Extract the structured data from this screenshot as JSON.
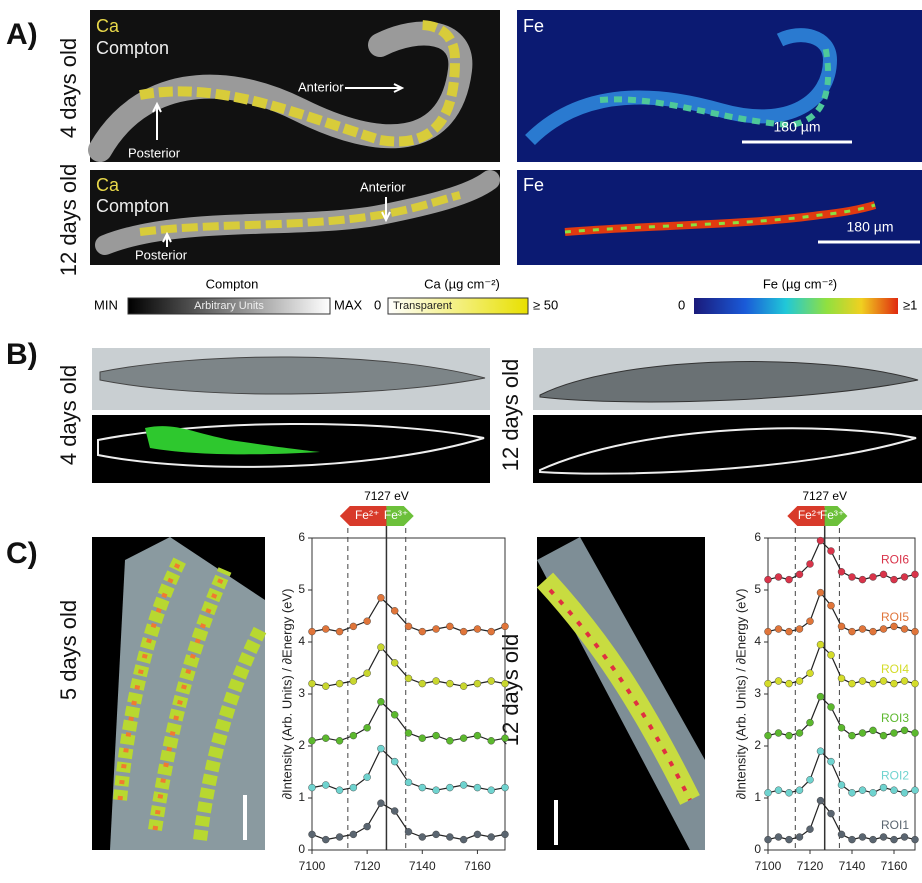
{
  "panel_a": {
    "label": "A)",
    "rows": [
      {
        "age": "4 days old",
        "left": {
          "element": "Ca",
          "channel": "Compton",
          "anterior": "Anterior",
          "posterior": "Posterior"
        },
        "right": {
          "element": "Fe",
          "scale_bar": "180 µm"
        }
      },
      {
        "age": "12 days old",
        "left": {
          "element": "Ca",
          "channel": "Compton",
          "anterior": "Anterior",
          "posterior": "Posterior"
        },
        "right": {
          "element": "Fe",
          "scale_bar": "180 µm"
        }
      }
    ],
    "colorbars": [
      {
        "title": "Compton",
        "min_label": "MIN",
        "inner_label": "Arbitrary Units",
        "max_label": "MAX"
      },
      {
        "title": "Ca (µg cm⁻²)",
        "min_label": "0",
        "inner_label": "Transparent",
        "max_label": "≥ 50"
      },
      {
        "title": "Fe (µg cm⁻²)",
        "min_label": "0",
        "max_label": "≥1"
      }
    ]
  },
  "panel_b": {
    "label": "B)",
    "left_age": "4 days old",
    "right_age": "12 days old"
  },
  "panel_c": {
    "label": "C)",
    "left_age": "5 days old",
    "right_age": "12 days old",
    "charts": [
      {
        "type": "line",
        "y_label": "∂Intensity (Arb. Units) / ∂Energy (eV)",
        "reference_line": {
          "value": 7127,
          "label": "7127 eV"
        },
        "window": [
          7113,
          7134
        ],
        "badges": [
          "Fe²⁺",
          "Fe³⁺"
        ],
        "xlim": [
          7100,
          7170
        ],
        "ylim": [
          0,
          6
        ],
        "xticks": [
          7100,
          7120,
          7140,
          7160
        ],
        "yticks": [
          0,
          1,
          2,
          3,
          4,
          5,
          6
        ],
        "x": [
          7100,
          7105,
          7110,
          7115,
          7120,
          7125,
          7130,
          7135,
          7140,
          7145,
          7150,
          7155,
          7160,
          7165,
          7170
        ],
        "series": [
          {
            "color": "#5a6570",
            "values": [
              0.3,
              0.2,
              0.25,
              0.3,
              0.45,
              0.9,
              0.75,
              0.35,
              0.25,
              0.3,
              0.25,
              0.2,
              0.3,
              0.25,
              0.3
            ]
          },
          {
            "color": "#6fd3cf",
            "values": [
              1.2,
              1.25,
              1.15,
              1.2,
              1.4,
              1.95,
              1.7,
              1.3,
              1.2,
              1.15,
              1.2,
              1.25,
              1.2,
              1.15,
              1.2
            ]
          },
          {
            "color": "#5cb82e",
            "values": [
              2.1,
              2.15,
              2.1,
              2.2,
              2.35,
              2.85,
              2.6,
              2.25,
              2.15,
              2.2,
              2.1,
              2.15,
              2.2,
              2.1,
              2.15
            ]
          },
          {
            "color": "#c8d62e",
            "values": [
              3.2,
              3.15,
              3.2,
              3.25,
              3.4,
              3.9,
              3.6,
              3.3,
              3.2,
              3.25,
              3.2,
              3.15,
              3.2,
              3.25,
              3.2
            ]
          },
          {
            "color": "#e0753a",
            "values": [
              4.2,
              4.25,
              4.2,
              4.3,
              4.4,
              4.85,
              4.6,
              4.3,
              4.2,
              4.25,
              4.3,
              4.2,
              4.25,
              4.2,
              4.3
            ]
          }
        ]
      },
      {
        "type": "line",
        "y_label": "∂Intensity (Arb. Units) / ∂Energy (eV)",
        "reference_line": {
          "value": 7127,
          "label": "7127 eV"
        },
        "window": [
          7113,
          7134
        ],
        "badges": [
          "Fe²⁺",
          "Fe³⁺"
        ],
        "xlim": [
          7100,
          7170
        ],
        "ylim": [
          0,
          6
        ],
        "xticks": [
          7100,
          7120,
          7140,
          7160
        ],
        "yticks": [
          0,
          1,
          2,
          3,
          4,
          5,
          6
        ],
        "x": [
          7100,
          7105,
          7110,
          7115,
          7120,
          7125,
          7130,
          7135,
          7140,
          7145,
          7150,
          7155,
          7160,
          7165,
          7170
        ],
        "series": [
          {
            "name": "ROI1",
            "color": "#5a6570",
            "values": [
              0.2,
              0.25,
              0.2,
              0.25,
              0.4,
              0.95,
              0.7,
              0.3,
              0.2,
              0.25,
              0.2,
              0.25,
              0.2,
              0.25,
              0.2
            ]
          },
          {
            "name": "ROI2",
            "color": "#6fd3cf",
            "values": [
              1.1,
              1.15,
              1.1,
              1.15,
              1.35,
              1.9,
              1.7,
              1.25,
              1.1,
              1.15,
              1.1,
              1.2,
              1.15,
              1.1,
              1.15
            ]
          },
          {
            "name": "ROI3",
            "color": "#5cb82e",
            "values": [
              2.2,
              2.25,
              2.2,
              2.25,
              2.45,
              2.95,
              2.75,
              2.35,
              2.2,
              2.25,
              2.3,
              2.2,
              2.25,
              2.3,
              2.25
            ]
          },
          {
            "name": "ROI4",
            "color": "#d4dc2a",
            "values": [
              3.2,
              3.25,
              3.2,
              3.25,
              3.4,
              3.95,
              3.75,
              3.3,
              3.2,
              3.25,
              3.2,
              3.25,
              3.2,
              3.25,
              3.2
            ]
          },
          {
            "name": "ROI5",
            "color": "#e0753a",
            "values": [
              4.2,
              4.25,
              4.2,
              4.25,
              4.4,
              4.95,
              4.7,
              4.3,
              4.2,
              4.25,
              4.2,
              4.25,
              4.3,
              4.25,
              4.2
            ]
          },
          {
            "name": "ROI6",
            "color": "#d9344a",
            "values": [
              5.2,
              5.25,
              5.2,
              5.3,
              5.5,
              5.95,
              5.75,
              5.35,
              5.25,
              5.2,
              5.25,
              5.3,
              5.2,
              5.25,
              5.3
            ]
          }
        ]
      }
    ]
  }
}
